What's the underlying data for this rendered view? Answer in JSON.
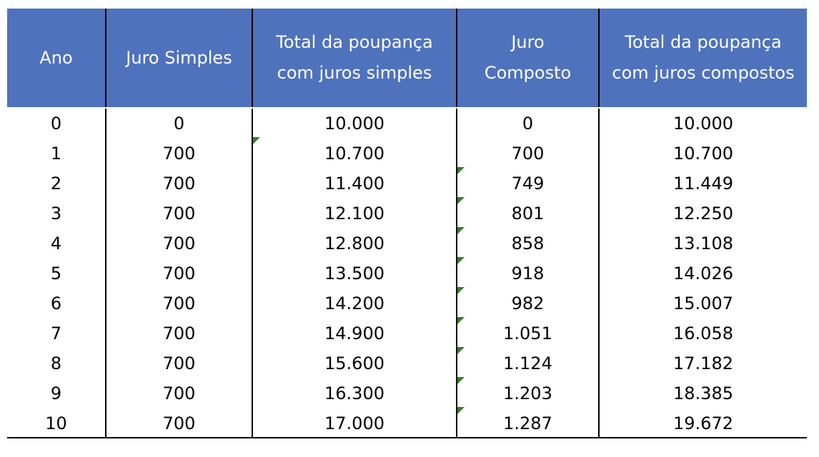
{
  "table": {
    "headers": [
      "Ano",
      "Juro Simples",
      "Total da poupança\ncom juros simples",
      "Juro\nComposto",
      "Total da poupança\ncom juros compostos"
    ],
    "rows": [
      [
        "0",
        "0",
        "10.000",
        "0",
        "10.000"
      ],
      [
        "1",
        "700",
        "10.700",
        "700",
        "10.700"
      ],
      [
        "2",
        "700",
        "11.400",
        "749",
        "11.449"
      ],
      [
        "3",
        "700",
        "12.100",
        "801",
        "12.250"
      ],
      [
        "4",
        "700",
        "12.800",
        "858",
        "13.108"
      ],
      [
        "5",
        "700",
        "13.500",
        "918",
        "14.026"
      ],
      [
        "6",
        "700",
        "14.200",
        "982",
        "15.007"
      ],
      [
        "7",
        "700",
        "14.900",
        "1.051",
        "16.058"
      ],
      [
        "8",
        "700",
        "15.600",
        "1.124",
        "17.182"
      ],
      [
        "9",
        "700",
        "16.300",
        "1.203",
        "18.385"
      ],
      [
        "10",
        "700",
        "17.000",
        "1.287",
        "19.672"
      ]
    ]
  },
  "colors": {
    "header_bg": "#4f72bd",
    "header_text": "#ffffff",
    "cell_text": "#000000",
    "error_flag": "#3a7d2c"
  }
}
